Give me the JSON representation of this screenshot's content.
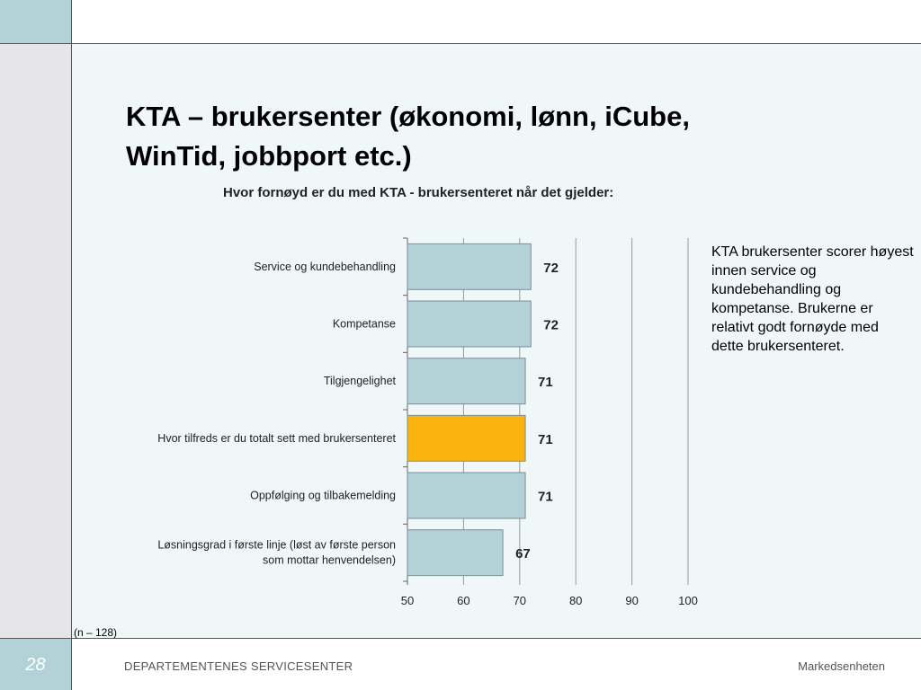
{
  "slide": {
    "title_line1": "KTA – brukersenter (økonomi, lønn, iCube,",
    "title_line2": "WinTid, jobbport etc.)",
    "side_note": "KTA brukersenter scorer høyest innen service og kundebehandling og kompetanse. Brukerne er relativt godt fornøyde med dette brukersenteret.",
    "sample_note": "(n – 128)",
    "slide_number": "28",
    "footer_left": "DEPARTEMENTENES SERVICESENTER",
    "footer_right": "Markedsenheten"
  },
  "colors": {
    "bar_default": "#b2d2d8",
    "bar_highlight": "#fbb40f",
    "accent_strip": "#b2d2d8",
    "gray_strip": "#e5e5ea"
  },
  "chart_data": {
    "type": "bar",
    "orientation": "horizontal",
    "title": "Hvor fornøyd er du med KTA - brukersenteret når det gjelder:",
    "categories": [
      [
        "Service og kundebehandling"
      ],
      [
        "Kompetanse"
      ],
      [
        "Tilgjengelighet"
      ],
      [
        "Hvor tilfreds er du totalt sett med brukersenteret"
      ],
      [
        "Oppfølging og tilbakemelding"
      ],
      [
        "Løsningsgrad i første linje (løst av første person",
        "som mottar henvendelsen)"
      ]
    ],
    "values": [
      72,
      72,
      71,
      71,
      71,
      67
    ],
    "value_labels": [
      "72",
      "72",
      "71",
      "71",
      "71",
      "67"
    ],
    "highlight_index": 3,
    "xlim": [
      50,
      100
    ],
    "xticks": [
      50,
      60,
      70,
      80,
      90,
      100
    ],
    "grid": true,
    "legend": "none"
  }
}
